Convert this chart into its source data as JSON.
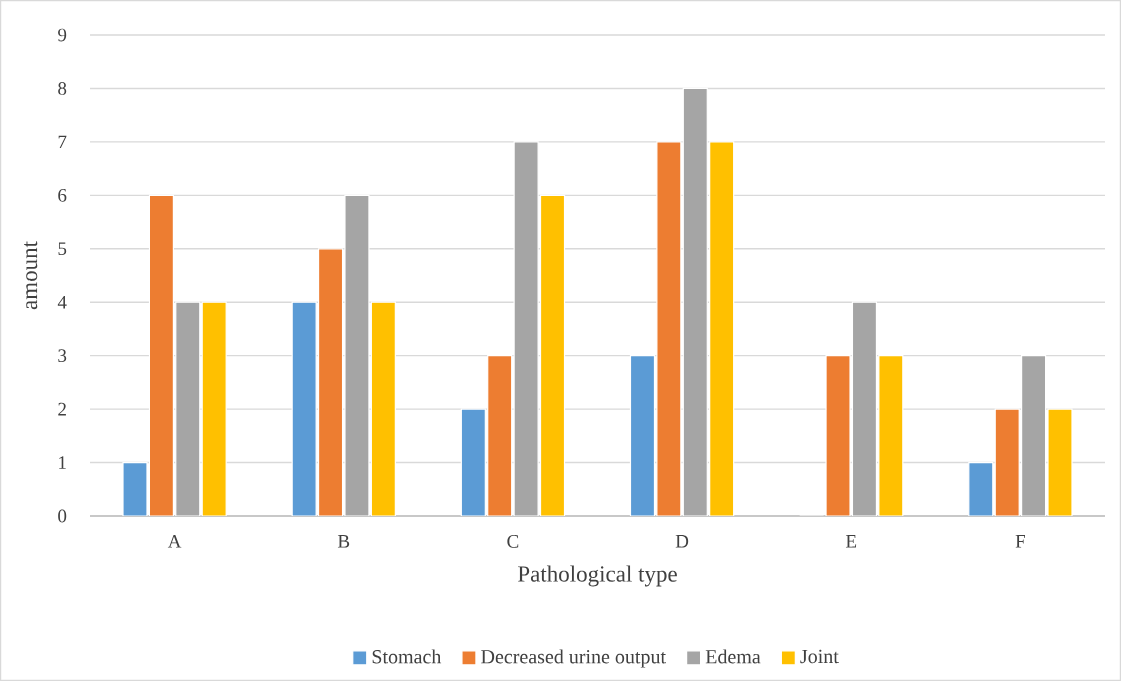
{
  "chart_data": {
    "type": "bar",
    "xlabel": "Pathological type",
    "ylabel": "amount",
    "categories": [
      "A",
      "B",
      "C",
      "D",
      "E",
      "F"
    ],
    "series": [
      {
        "name": "Stomach",
        "color": "#5b9bd5",
        "values": [
          1,
          4,
          2,
          3,
          0,
          1
        ]
      },
      {
        "name": "Decreased urine output",
        "color": "#ed7d31",
        "values": [
          6,
          5,
          3,
          7,
          3,
          2
        ]
      },
      {
        "name": "Edema",
        "color": "#a5a5a5",
        "values": [
          4,
          6,
          7,
          8,
          4,
          3
        ]
      },
      {
        "name": "Joint",
        "color": "#ffc000",
        "values": [
          4,
          4,
          6,
          7,
          3,
          2
        ]
      }
    ],
    "ylim": [
      0,
      9
    ],
    "yticks": [
      0,
      1,
      2,
      3,
      4,
      5,
      6,
      7,
      8,
      9
    ],
    "grid": "y",
    "legend": "bottom"
  }
}
